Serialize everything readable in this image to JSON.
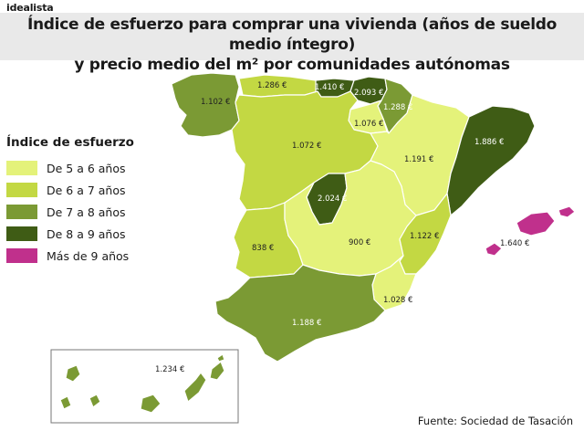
{
  "brand": "idealista",
  "title": {
    "line1": "Índice de esfuerzo para comprar una vivienda (años de sueldo medio íntegro)",
    "line2": "y precio medio del m² por comunidades autónomas"
  },
  "legend": {
    "title": "Índice de esfuerzo",
    "items": [
      {
        "label": "De 5 a 6 años",
        "color": "#e4f27a"
      },
      {
        "label": "De 6 a 7 años",
        "color": "#c3d843"
      },
      {
        "label": "De 7 a 8 años",
        "color": "#7b9a34"
      },
      {
        "label": "De 8 a 9 años",
        "color": "#3f5c15"
      },
      {
        "label": "Más de 9 años",
        "color": "#c0308c"
      }
    ]
  },
  "regions": [
    {
      "name": "Galicia",
      "price": "1.102 €",
      "band": 2
    },
    {
      "name": "Asturias",
      "price": "1.286 €",
      "band": 1
    },
    {
      "name": "Cantabria",
      "price": "1.410 €",
      "band": 3
    },
    {
      "name": "País Vasco",
      "price": "2.093 €",
      "band": 3
    },
    {
      "name": "Navarra",
      "price": "1.288 €",
      "band": 2
    },
    {
      "name": "La Rioja",
      "price": "1.076 €",
      "band": 0
    },
    {
      "name": "Castilla y León",
      "price": "1.072 €",
      "band": 1
    },
    {
      "name": "Aragón",
      "price": "1.191 €",
      "band": 0
    },
    {
      "name": "Cataluña",
      "price": "1.886 €",
      "band": 3
    },
    {
      "name": "Madrid",
      "price": "2.024 €",
      "band": 3
    },
    {
      "name": "Extremadura",
      "price": "838 €",
      "band": 1
    },
    {
      "name": "Castilla-La Mancha",
      "price": "900 €",
      "band": 0
    },
    {
      "name": "Comunidad Valenciana",
      "price": "1.122 €",
      "band": 1
    },
    {
      "name": "Murcia",
      "price": "1.028 €",
      "band": 0
    },
    {
      "name": "Andalucía",
      "price": "1.188 €",
      "band": 2
    },
    {
      "name": "Baleares",
      "price": "1.640 €",
      "band": 4
    },
    {
      "name": "Canarias",
      "price": "1.234 €",
      "band": 2
    }
  ],
  "source": "Fuente: Sociedad de Tasación"
}
